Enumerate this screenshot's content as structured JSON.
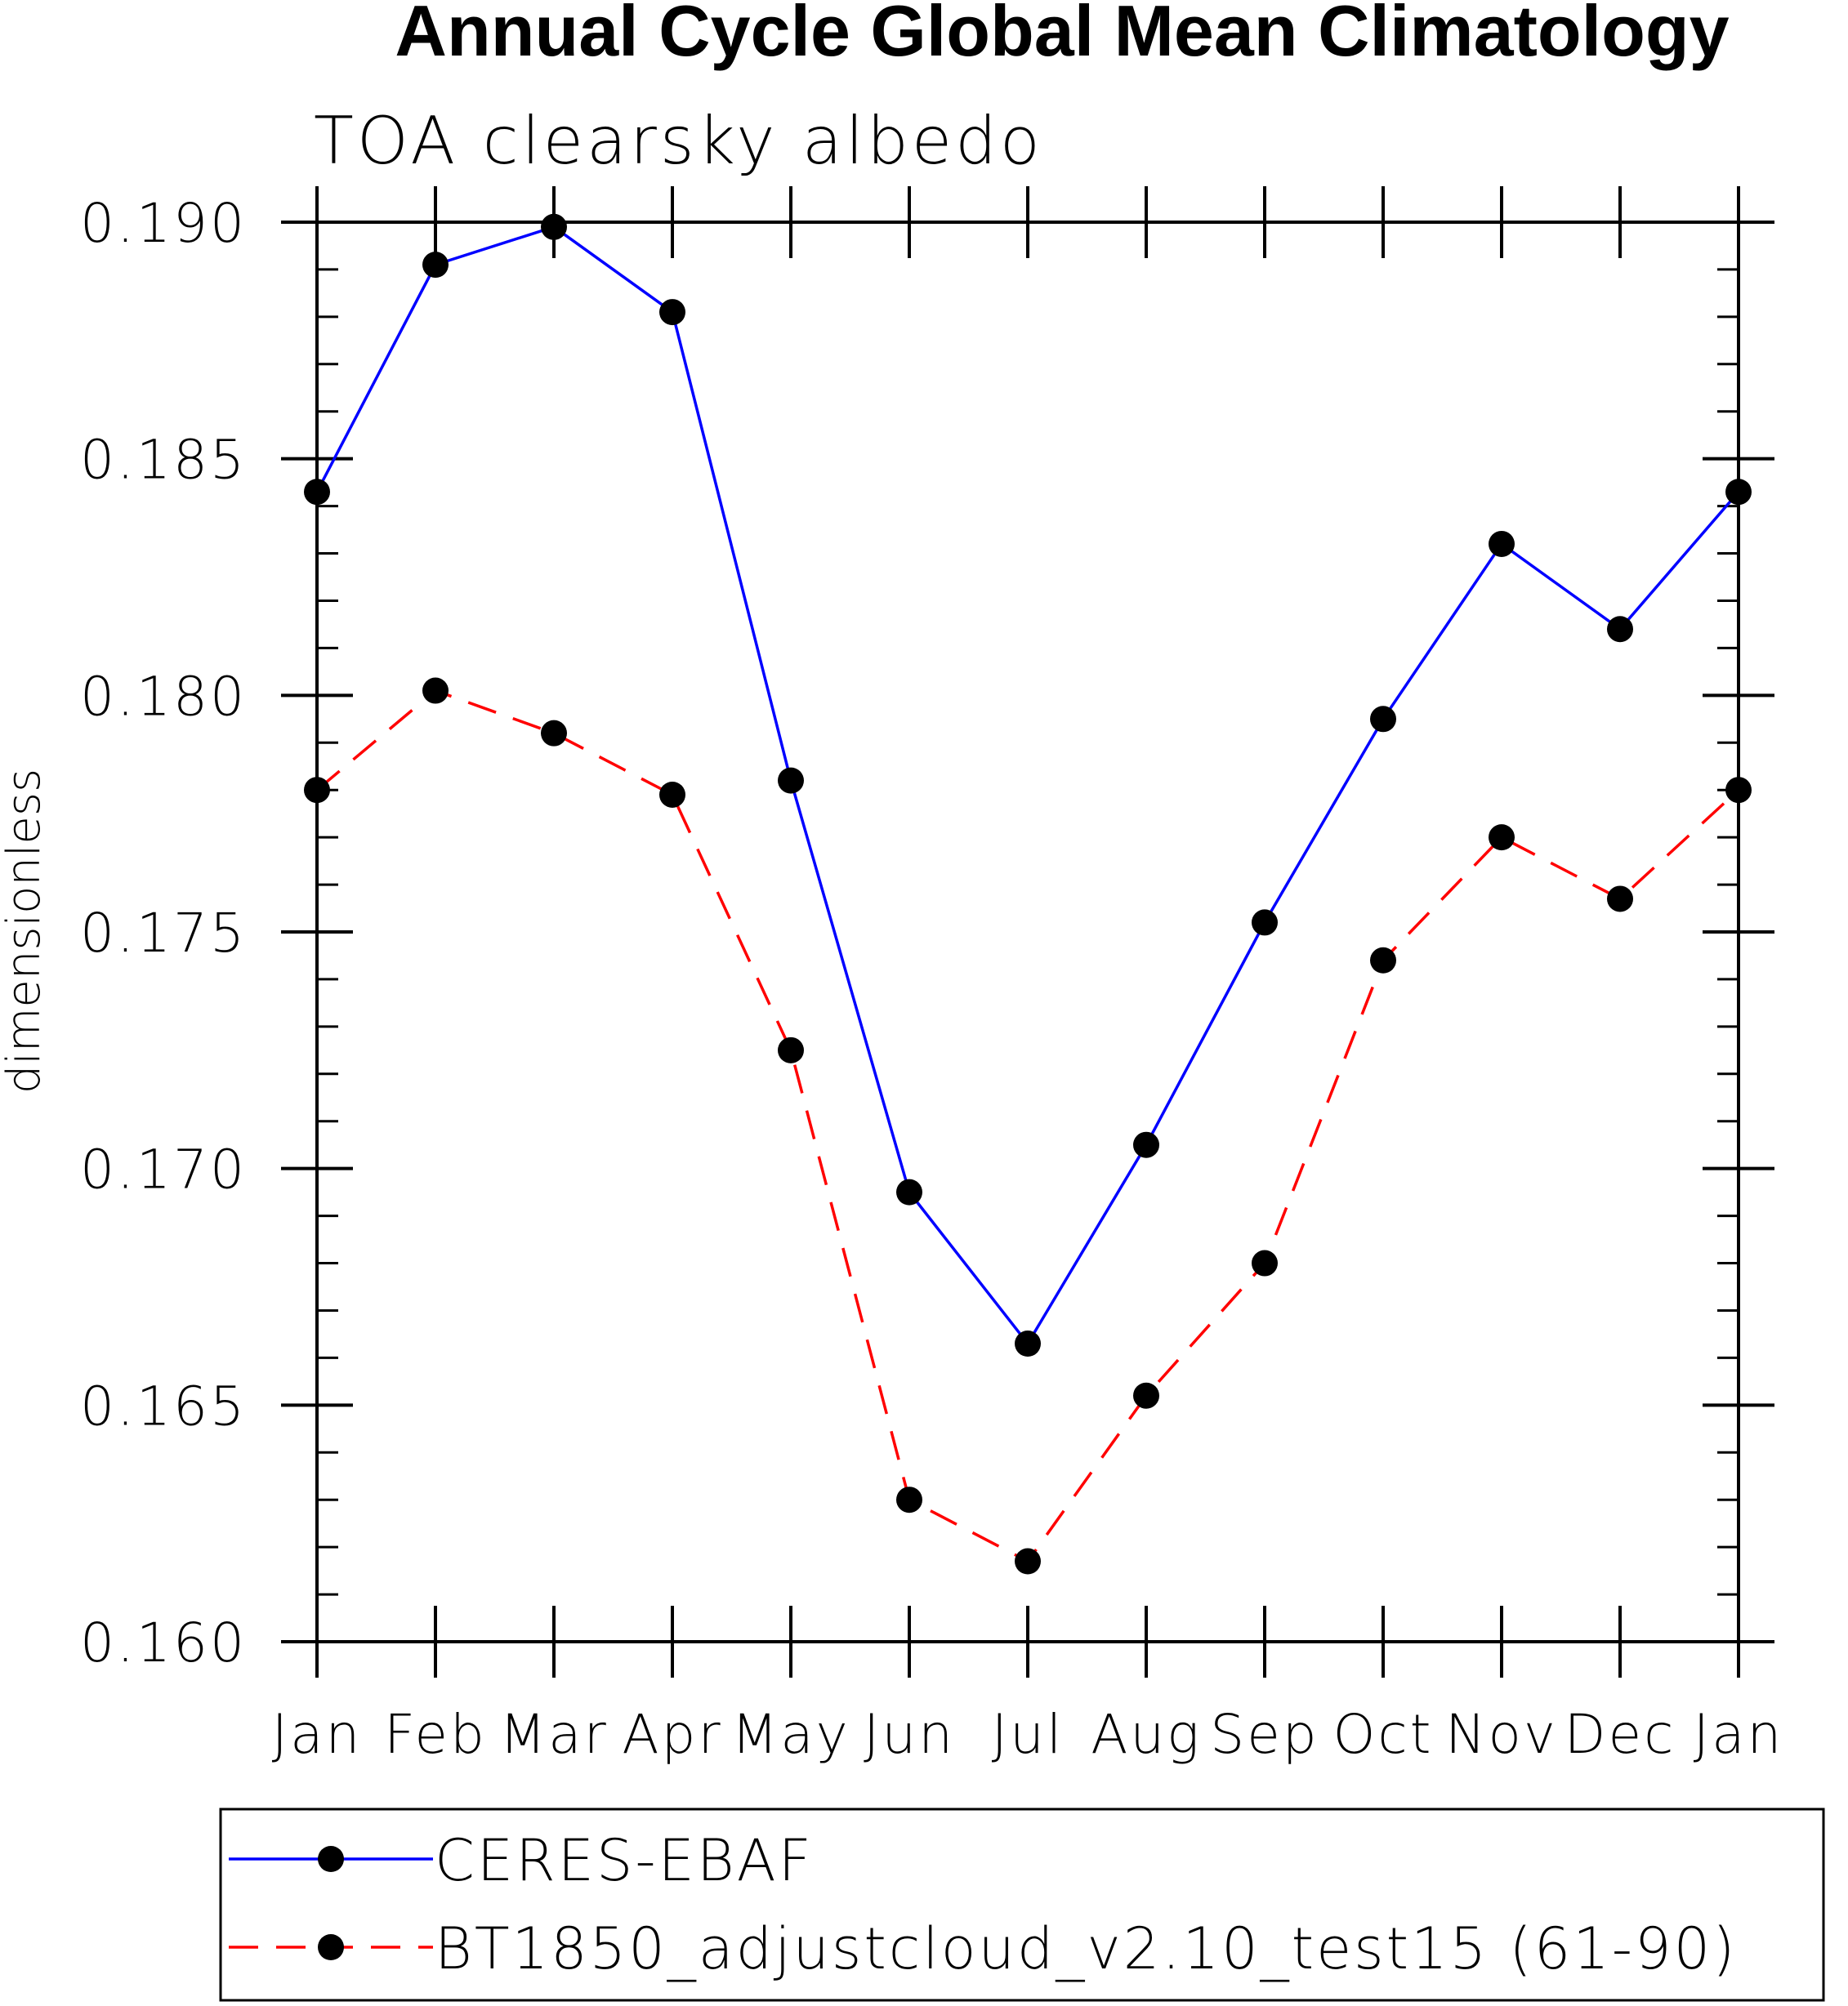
{
  "chart_data": {
    "type": "line",
    "title": "Annual Cycle Global Mean Climatology",
    "subtitle": "TOA clearsky albedo",
    "ylabel": "dimensionless",
    "xlabel": "",
    "categories": [
      "Jan",
      "Feb",
      "Mar",
      "Apr",
      "May",
      "Jun",
      "Jul",
      "Aug",
      "Sep",
      "Oct",
      "Nov",
      "Dec",
      "Jan"
    ],
    "ylim": [
      0.16,
      0.19
    ],
    "yticks": [
      "0.160",
      "0.165",
      "0.170",
      "0.175",
      "0.180",
      "0.185",
      "0.190"
    ],
    "grid": false,
    "legend_position": "bottom",
    "series": [
      {
        "name": "CERES-EBAF",
        "color": "#0000ff",
        "style": "solid",
        "marker": "filled-circle",
        "values": [
          0.1843,
          0.1891,
          0.1899,
          0.1881,
          0.1782,
          0.1695,
          0.1663,
          0.1705,
          0.1752,
          0.1795,
          0.1832,
          0.1814,
          0.1843
        ]
      },
      {
        "name": "BT1850_adjustcloud_v2.10_test15 (61-90)",
        "color": "#ff0000",
        "style": "dashed",
        "marker": "filled-circle",
        "values": [
          0.178,
          0.1801,
          0.1792,
          0.1779,
          0.1725,
          0.163,
          0.1617,
          0.1652,
          0.168,
          0.1744,
          0.177,
          0.1757,
          0.178
        ]
      }
    ]
  }
}
